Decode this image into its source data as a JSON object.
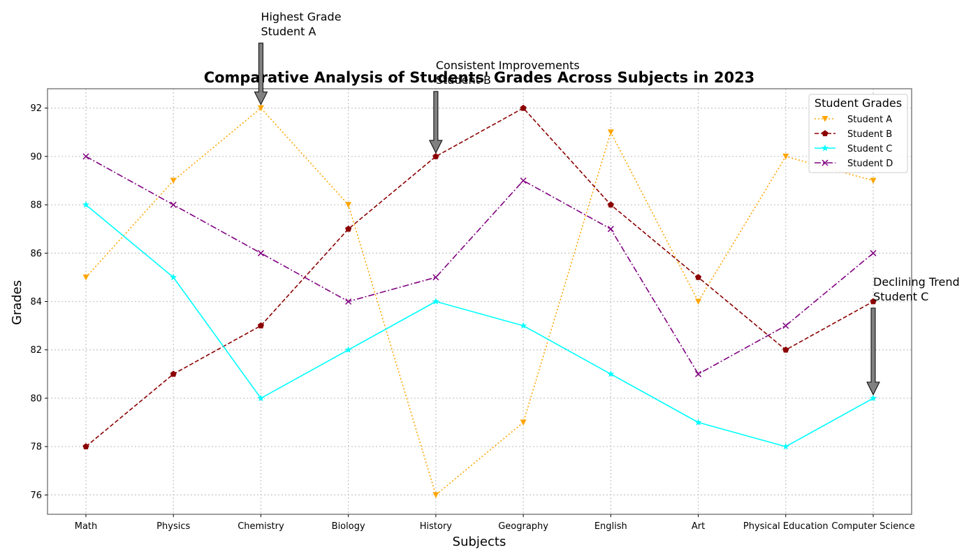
{
  "chart_data": {
    "type": "line",
    "title": "Comparative Analysis of Students' Grades Across Subjects in 2023",
    "xlabel": "Subjects",
    "ylabel": "Grades",
    "categories": [
      "Math",
      "Physics",
      "Chemistry",
      "Biology",
      "History",
      "Geography",
      "English",
      "Art",
      "Physical Education",
      "Computer Science"
    ],
    "ylim": [
      75.2,
      92.8
    ],
    "yticks": [
      76,
      78,
      80,
      82,
      84,
      86,
      88,
      90,
      92
    ],
    "grid": true,
    "legend": {
      "title": "Student Grades",
      "position": "top-right"
    },
    "series": [
      {
        "name": "Student A",
        "values": [
          85,
          89,
          92,
          88,
          76,
          79,
          91,
          84,
          90,
          89
        ],
        "color": "#FFA500",
        "dash": "dotted",
        "marker": "triangle-down"
      },
      {
        "name": "Student B",
        "values": [
          78,
          81,
          83,
          87,
          90,
          92,
          88,
          85,
          82,
          84
        ],
        "color": "#8B0000",
        "dash": "dashed",
        "marker": "pentagon"
      },
      {
        "name": "Student C",
        "values": [
          88,
          85,
          80,
          82,
          84,
          83,
          81,
          79,
          78,
          80
        ],
        "color": "#00FFFF",
        "dash": "solid",
        "marker": "star"
      },
      {
        "name": "Student D",
        "values": [
          90,
          88,
          86,
          84,
          85,
          89,
          87,
          81,
          83,
          86
        ],
        "color": "#800080",
        "dash": "dashdot",
        "marker": "x"
      }
    ],
    "annotations": [
      {
        "lines": [
          "Highest Grade",
          "Student A"
        ],
        "category": "Chemistry",
        "value": 92
      },
      {
        "lines": [
          "Consistent Improvements",
          "Student B"
        ],
        "category": "History",
        "value": 90
      },
      {
        "lines": [
          "Declining Trend",
          "Student C"
        ],
        "category": "Computer Science",
        "value": 80
      }
    ]
  }
}
